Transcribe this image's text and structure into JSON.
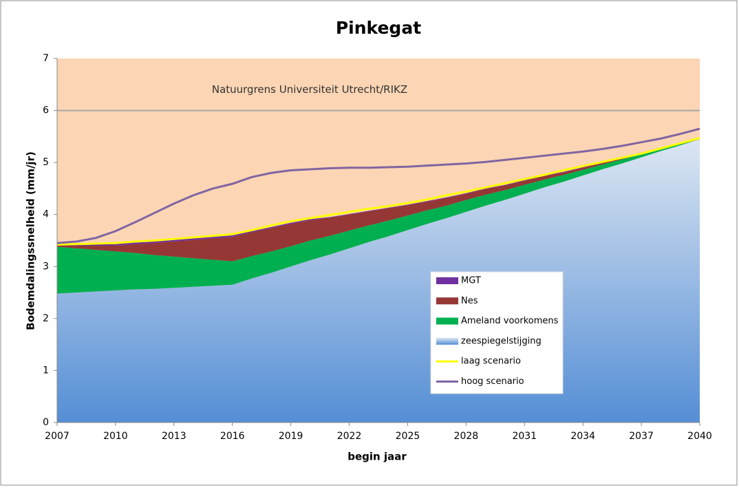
{
  "chart_data": {
    "type": "area",
    "title": "Pinkegat",
    "x_label": "begin jaar",
    "y_label": "Bodemdalingssnelheid   (mm/jr)",
    "background": "#fcd5b4",
    "x": [
      2007,
      2008,
      2009,
      2010,
      2011,
      2012,
      2013,
      2014,
      2015,
      2016,
      2017,
      2018,
      2019,
      2020,
      2021,
      2022,
      2023,
      2024,
      2025,
      2026,
      2027,
      2028,
      2029,
      2030,
      2031,
      2032,
      2033,
      2034,
      2035,
      2036,
      2037,
      2038,
      2039,
      2040
    ],
    "xlim": [
      2007,
      2040
    ],
    "xticks": [
      2007,
      2010,
      2013,
      2016,
      2019,
      2022,
      2025,
      2028,
      2031,
      2034,
      2037,
      2040
    ],
    "ylim": [
      0,
      7
    ],
    "yticks": [
      0,
      1,
      2,
      3,
      4,
      5,
      6,
      7
    ],
    "threshold": {
      "value": 6,
      "label": "Natuurgrens Universiteit Utrecht/RIKZ",
      "color": "#a6a6a6"
    },
    "series": [
      {
        "name": "MGT",
        "type": "area",
        "color": "#7030a0",
        "values": [
          0.01,
          0.02,
          0.03,
          0.03,
          0.03,
          0.03,
          0.03,
          0.03,
          0.03,
          0.03,
          0.02,
          0.02,
          0.02,
          0.02,
          0.01,
          0.01,
          0.01,
          0.01,
          0.01,
          0.01,
          0.01,
          0.01,
          0.01,
          0.01,
          0.01,
          0.01,
          0.01,
          0.01,
          0.01,
          0.01,
          0.01,
          0.01,
          0.01,
          0.01
        ]
      },
      {
        "name": "Nes",
        "type": "area",
        "color": "#953735",
        "values": [
          0.02,
          0.05,
          0.08,
          0.11,
          0.17,
          0.23,
          0.29,
          0.35,
          0.41,
          0.47,
          0.46,
          0.45,
          0.43,
          0.39,
          0.35,
          0.31,
          0.27,
          0.24,
          0.2,
          0.17,
          0.15,
          0.12,
          0.11,
          0.09,
          0.08,
          0.07,
          0.05,
          0.04,
          0.03,
          0.03,
          0.02,
          0.01,
          0.01,
          0
        ]
      },
      {
        "name": "Ameland voorkomens",
        "type": "area",
        "color": "#00b050",
        "values": [
          0.9,
          0.85,
          0.8,
          0.75,
          0.7,
          0.65,
          0.6,
          0.55,
          0.5,
          0.45,
          0.43,
          0.41,
          0.39,
          0.38,
          0.36,
          0.34,
          0.32,
          0.3,
          0.28,
          0.26,
          0.24,
          0.23,
          0.21,
          0.19,
          0.17,
          0.15,
          0.13,
          0.11,
          0.09,
          0.08,
          0.06,
          0.04,
          0.02,
          0
        ]
      },
      {
        "name": "zeespiegelstijging",
        "type": "area",
        "color": "#558ed5",
        "values": [
          2.48,
          2.5,
          2.52,
          2.54,
          2.56,
          2.57,
          2.59,
          2.61,
          2.63,
          2.65,
          2.77,
          2.88,
          3,
          3.12,
          3.23,
          3.35,
          3.47,
          3.58,
          3.7,
          3.82,
          3.93,
          4.05,
          4.17,
          4.28,
          4.4,
          4.52,
          4.63,
          4.75,
          4.87,
          4.98,
          5.1,
          5.22,
          5.33,
          5.45
        ]
      },
      {
        "name": "laag scenario",
        "type": "line",
        "color": "#ffff00",
        "values": [
          3.42,
          3.43,
          3.44,
          3.45,
          3.48,
          3.5,
          3.53,
          3.56,
          3.59,
          3.62,
          3.7,
          3.79,
          3.87,
          3.93,
          3.99,
          4.05,
          4.11,
          4.16,
          4.22,
          4.29,
          4.37,
          4.44,
          4.52,
          4.6,
          4.68,
          4.76,
          4.85,
          4.93,
          5.01,
          5.09,
          5.17,
          5.27,
          5.37,
          5.47
        ]
      },
      {
        "name": "hoog scenario",
        "type": "line",
        "color": "#8064a2",
        "values": [
          3.45,
          3.48,
          3.55,
          3.68,
          3.85,
          4.03,
          4.21,
          4.37,
          4.5,
          4.59,
          4.72,
          4.8,
          4.85,
          4.87,
          4.89,
          4.9,
          4.9,
          4.91,
          4.92,
          4.94,
          4.96,
          4.98,
          5.01,
          5.05,
          5.09,
          5.13,
          5.17,
          5.21,
          5.26,
          5.32,
          5.39,
          5.46,
          5.55,
          5.65
        ]
      }
    ]
  }
}
